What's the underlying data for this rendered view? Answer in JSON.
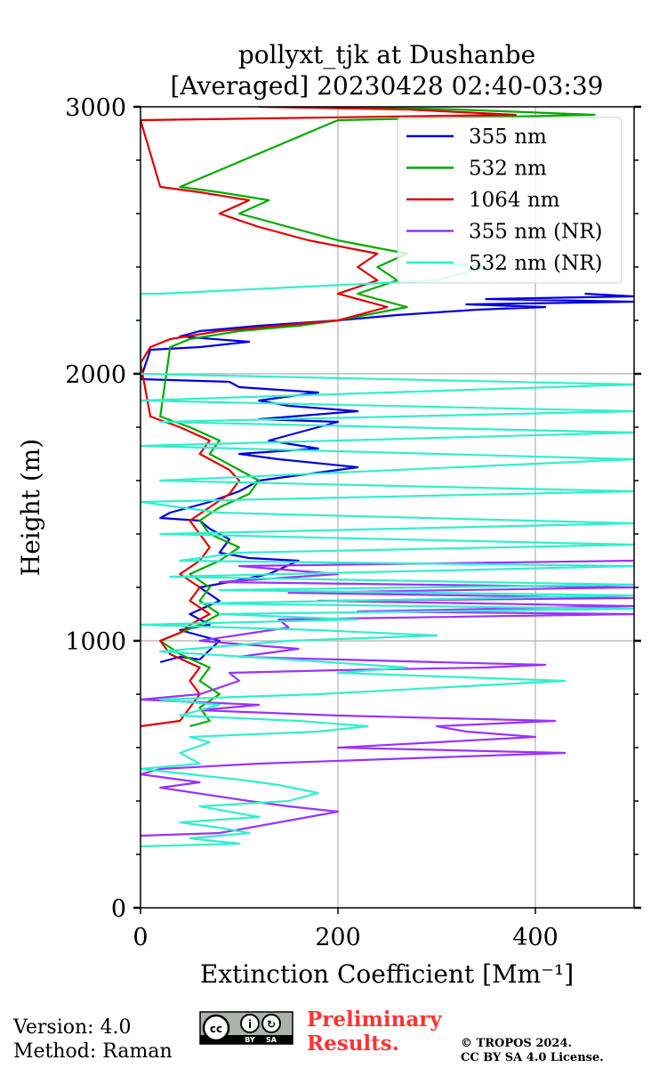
{
  "chart_data": {
    "type": "line",
    "title": "pollyxt_tjk at Dushanbe",
    "subtitle": "[Averaged] 20230428 02:40-03:39",
    "xlabel": "Extinction Coefficient [Mm⁻¹]",
    "ylabel": "Height (m)",
    "xlim": [
      0,
      500
    ],
    "ylim": [
      0,
      3000
    ],
    "x_ticks": [
      0,
      200,
      400
    ],
    "y_ticks": [
      0,
      1000,
      2000,
      3000
    ],
    "grid": true,
    "legend_position": "top-right",
    "series": [
      {
        "name": "355 nm",
        "color": "#0000dd",
        "points": [
          [
            20,
            920
          ],
          [
            40,
            940
          ],
          [
            60,
            930
          ],
          [
            80,
            1000
          ],
          [
            60,
            1020
          ],
          [
            40,
            1040
          ],
          [
            70,
            1060
          ],
          [
            50,
            1100
          ],
          [
            80,
            1150
          ],
          [
            60,
            1200
          ],
          [
            90,
            1220
          ],
          [
            130,
            1250
          ],
          [
            160,
            1300
          ],
          [
            110,
            1310
          ],
          [
            80,
            1330
          ],
          [
            90,
            1380
          ],
          [
            70,
            1420
          ],
          [
            60,
            1450
          ],
          [
            20,
            1460
          ],
          [
            30,
            1480
          ],
          [
            50,
            1500
          ],
          [
            70,
            1520
          ],
          [
            100,
            1560
          ],
          [
            120,
            1600
          ],
          [
            220,
            1650
          ],
          [
            140,
            1680
          ],
          [
            100,
            1700
          ],
          [
            180,
            1720
          ],
          [
            130,
            1750
          ],
          [
            160,
            1780
          ],
          [
            200,
            1820
          ],
          [
            120,
            1830
          ],
          [
            220,
            1860
          ],
          [
            150,
            1880
          ],
          [
            120,
            1900
          ],
          [
            180,
            1930
          ],
          [
            100,
            1950
          ],
          [
            90,
            1970
          ],
          [
            0,
            1980
          ],
          [
            10,
            2090
          ],
          [
            60,
            2100
          ],
          [
            110,
            2120
          ],
          [
            40,
            2140
          ],
          [
            60,
            2160
          ],
          [
            120,
            2180
          ],
          [
            200,
            2200
          ],
          [
            260,
            2220
          ],
          [
            340,
            2240
          ],
          [
            410,
            2250
          ],
          [
            330,
            2260
          ],
          [
            500,
            2270
          ],
          [
            350,
            2280
          ],
          [
            500,
            2290
          ],
          [
            450,
            2300
          ]
        ]
      },
      {
        "name": "532 nm",
        "color": "#00aa00",
        "points": [
          [
            50,
            680
          ],
          [
            70,
            700
          ],
          [
            60,
            750
          ],
          [
            80,
            800
          ],
          [
            60,
            850
          ],
          [
            70,
            900
          ],
          [
            40,
            950
          ],
          [
            20,
            1000
          ],
          [
            40,
            1030
          ],
          [
            60,
            1060
          ],
          [
            80,
            1100
          ],
          [
            60,
            1150
          ],
          [
            70,
            1200
          ],
          [
            50,
            1250
          ],
          [
            80,
            1300
          ],
          [
            100,
            1350
          ],
          [
            70,
            1400
          ],
          [
            60,
            1450
          ],
          [
            80,
            1500
          ],
          [
            110,
            1550
          ],
          [
            120,
            1600
          ],
          [
            100,
            1640
          ],
          [
            70,
            1700
          ],
          [
            80,
            1750
          ],
          [
            50,
            1800
          ],
          [
            20,
            1840
          ],
          [
            30,
            2100
          ],
          [
            50,
            2130
          ],
          [
            100,
            2160
          ],
          [
            160,
            2180
          ],
          [
            200,
            2200
          ],
          [
            270,
            2250
          ],
          [
            220,
            2300
          ],
          [
            260,
            2350
          ],
          [
            240,
            2400
          ],
          [
            270,
            2450
          ],
          [
            200,
            2500
          ],
          [
            150,
            2550
          ],
          [
            100,
            2600
          ],
          [
            130,
            2650
          ],
          [
            80,
            2680
          ],
          [
            40,
            2700
          ],
          [
            200,
            2950
          ],
          [
            460,
            2970
          ],
          [
            320,
            2990
          ],
          [
            200,
            3000
          ]
        ]
      },
      {
        "name": "1064 nm",
        "color": "#dd0000",
        "points": [
          [
            0,
            680
          ],
          [
            40,
            700
          ],
          [
            50,
            750
          ],
          [
            60,
            800
          ],
          [
            50,
            850
          ],
          [
            60,
            900
          ],
          [
            30,
            950
          ],
          [
            20,
            1000
          ],
          [
            40,
            1030
          ],
          [
            50,
            1060
          ],
          [
            70,
            1100
          ],
          [
            50,
            1150
          ],
          [
            60,
            1200
          ],
          [
            40,
            1250
          ],
          [
            60,
            1300
          ],
          [
            70,
            1350
          ],
          [
            60,
            1400
          ],
          [
            50,
            1450
          ],
          [
            70,
            1500
          ],
          [
            90,
            1550
          ],
          [
            100,
            1600
          ],
          [
            90,
            1640
          ],
          [
            60,
            1700
          ],
          [
            70,
            1750
          ],
          [
            40,
            1800
          ],
          [
            10,
            1840
          ],
          [
            0,
            2040
          ],
          [
            10,
            2100
          ],
          [
            30,
            2130
          ],
          [
            80,
            2160
          ],
          [
            140,
            2180
          ],
          [
            200,
            2200
          ],
          [
            250,
            2250
          ],
          [
            200,
            2300
          ],
          [
            240,
            2350
          ],
          [
            220,
            2400
          ],
          [
            240,
            2450
          ],
          [
            170,
            2500
          ],
          [
            120,
            2550
          ],
          [
            80,
            2600
          ],
          [
            110,
            2650
          ],
          [
            60,
            2680
          ],
          [
            20,
            2700
          ],
          [
            0,
            2950
          ],
          [
            380,
            2970
          ],
          [
            270,
            2990
          ],
          [
            120,
            3000
          ]
        ]
      },
      {
        "name": "355 nm (NR)",
        "color": "#9933ff",
        "points": [
          [
            0,
            270
          ],
          [
            80,
            280
          ],
          [
            200,
            360
          ],
          [
            150,
            380
          ],
          [
            110,
            400
          ],
          [
            20,
            450
          ],
          [
            60,
            470
          ],
          [
            0,
            500
          ],
          [
            20,
            520
          ],
          [
            120,
            540
          ],
          [
            430,
            580
          ],
          [
            200,
            600
          ],
          [
            300,
            620
          ],
          [
            400,
            640
          ],
          [
            330,
            660
          ],
          [
            300,
            680
          ],
          [
            420,
            700
          ],
          [
            200,
            720
          ],
          [
            60,
            740
          ],
          [
            120,
            760
          ],
          [
            0,
            780
          ],
          [
            60,
            800
          ],
          [
            100,
            850
          ],
          [
            90,
            880
          ],
          [
            200,
            890
          ],
          [
            350,
            900
          ],
          [
            410,
            910
          ],
          [
            300,
            920
          ],
          [
            100,
            940
          ],
          [
            160,
            970
          ],
          [
            60,
            1000
          ],
          [
            150,
            1050
          ],
          [
            140,
            1080
          ],
          [
            500,
            1100
          ],
          [
            220,
            1110
          ],
          [
            500,
            1130
          ],
          [
            180,
            1150
          ],
          [
            500,
            1160
          ],
          [
            150,
            1180
          ],
          [
            500,
            1200
          ],
          [
            80,
            1220
          ],
          [
            200,
            1250
          ],
          [
            100,
            1280
          ],
          [
            500,
            1300
          ]
        ]
      },
      {
        "name": "532 nm (NR)",
        "color": "#33eecc",
        "points": [
          [
            0,
            230
          ],
          [
            100,
            240
          ],
          [
            50,
            260
          ],
          [
            110,
            280
          ],
          [
            80,
            300
          ],
          [
            40,
            320
          ],
          [
            120,
            340
          ],
          [
            60,
            380
          ],
          [
            150,
            400
          ],
          [
            180,
            430
          ],
          [
            140,
            460
          ],
          [
            100,
            480
          ],
          [
            50,
            500
          ],
          [
            0,
            520
          ],
          [
            60,
            540
          ],
          [
            40,
            580
          ],
          [
            70,
            620
          ],
          [
            50,
            640
          ],
          [
            180,
            660
          ],
          [
            230,
            680
          ],
          [
            160,
            700
          ],
          [
            40,
            720
          ],
          [
            80,
            760
          ],
          [
            20,
            780
          ],
          [
            180,
            800
          ],
          [
            430,
            850
          ],
          [
            200,
            880
          ],
          [
            270,
            900
          ],
          [
            150,
            930
          ],
          [
            20,
            960
          ],
          [
            150,
            1000
          ],
          [
            300,
            1020
          ],
          [
            180,
            1040
          ],
          [
            0,
            1060
          ],
          [
            220,
            1080
          ],
          [
            80,
            1100
          ],
          [
            500,
            1120
          ],
          [
            60,
            1140
          ],
          [
            500,
            1170
          ],
          [
            80,
            1190
          ],
          [
            500,
            1210
          ],
          [
            30,
            1240
          ],
          [
            500,
            1280
          ],
          [
            40,
            1300
          ],
          [
            100,
            1330
          ],
          [
            500,
            1360
          ],
          [
            20,
            1400
          ],
          [
            500,
            1440
          ],
          [
            80,
            1480
          ],
          [
            0,
            1520
          ],
          [
            500,
            1560
          ],
          [
            20,
            1600
          ],
          [
            500,
            1680
          ],
          [
            0,
            1730
          ],
          [
            500,
            1780
          ],
          [
            20,
            1820
          ],
          [
            500,
            1860
          ],
          [
            0,
            1900
          ],
          [
            500,
            1960
          ],
          [
            0,
            2000
          ],
          [
            0,
            2300
          ],
          [
            20,
            2300
          ],
          [
            300,
            2350
          ],
          [
            350,
            2400
          ],
          [
            280,
            2420
          ]
        ]
      }
    ]
  },
  "footer": {
    "version": "Version: 4.0",
    "method": "Method: Raman",
    "preliminary_line1": "Preliminary",
    "preliminary_line2": "Results.",
    "copyright_line1": "© TROPOS 2024.",
    "copyright_line2": "CC BY SA 4.0 License.",
    "license_badge": {
      "by": "BY",
      "sa": "SA"
    }
  }
}
